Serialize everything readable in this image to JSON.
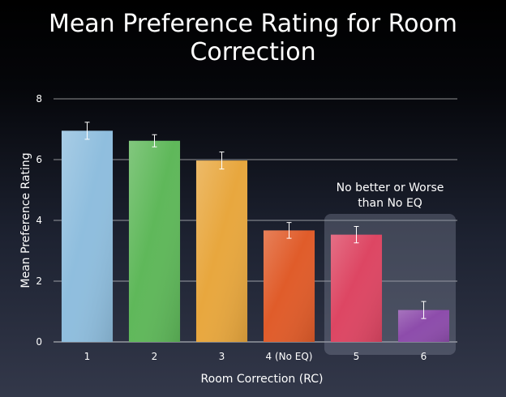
{
  "chart_data": {
    "type": "bar",
    "title": "Mean Preference Rating for Room Correction",
    "xlabel": "Room Correction (RC)",
    "ylabel": "Mean Preference Rating",
    "categories": [
      "1",
      "2",
      "3",
      "4 (No EQ)",
      "5",
      "6"
    ],
    "values": [
      6.95,
      6.62,
      5.97,
      3.67,
      3.53,
      1.05
    ],
    "error": [
      0.28,
      0.2,
      0.28,
      0.26,
      0.27,
      0.28
    ],
    "bar_colors": [
      "#8fbede",
      "#5fb85a",
      "#e8a73e",
      "#e05c2a",
      "#dd4663",
      "#8d4cab"
    ],
    "ylim": [
      0,
      8
    ],
    "yticks": [
      0,
      2,
      4,
      6,
      8
    ],
    "grid": true,
    "annotation": {
      "lines": [
        "No better or Worse",
        "than No EQ"
      ],
      "categories": [
        "5",
        "6"
      ]
    }
  }
}
